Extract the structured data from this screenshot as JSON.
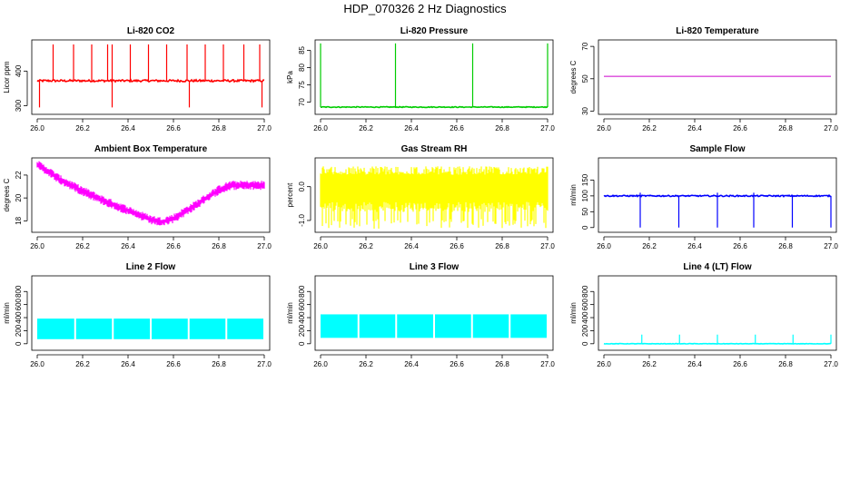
{
  "figure_title": "HDP_070326  2 Hz Diagnostics",
  "chart_data": [
    {
      "type": "line",
      "title": "Li-820 CO2",
      "xlabel": "",
      "ylabel": "Licor ppm",
      "color": "#ff0000",
      "xlim": [
        26.0,
        27.0
      ],
      "ylim": [
        275,
        490
      ],
      "xticks": [
        26.0,
        26.2,
        26.4,
        26.6,
        26.8,
        27.0
      ],
      "xtick_labels": [
        "26.0",
        "26.2",
        "26.4",
        "26.6",
        "26.8",
        "27.0"
      ],
      "yticks": [
        300,
        400
      ],
      "ytick_labels": [
        "300",
        "400"
      ],
      "pattern": "baseline_spikes",
      "baseline": 372,
      "noise": 3,
      "spikes_up": [
        26.07,
        26.16,
        26.24,
        26.31,
        26.33,
        26.41,
        26.49,
        26.57,
        26.66,
        26.74,
        26.82,
        26.91,
        26.98
      ],
      "spike_up_value": 477,
      "spikes_down": [
        26.01,
        26.33,
        26.67,
        26.99
      ],
      "spike_down_value": 295
    },
    {
      "type": "line",
      "title": "Li-820 Pressure",
      "xlabel": "",
      "ylabel": "kPa",
      "color": "#00cc00",
      "xlim": [
        26.0,
        27.0
      ],
      "ylim": [
        66.5,
        88
      ],
      "xticks": [
        26.0,
        26.2,
        26.4,
        26.6,
        26.8,
        27.0
      ],
      "xtick_labels": [
        "26.0",
        "26.2",
        "26.4",
        "26.6",
        "26.8",
        "27.0"
      ],
      "yticks": [
        70,
        75,
        80,
        85
      ],
      "ytick_labels": [
        "70",
        "75",
        "80",
        "85"
      ],
      "pattern": "baseline_spikes",
      "baseline": 68.6,
      "noise": 0.12,
      "spikes_up": [
        26.0,
        26.33,
        26.67,
        27.0
      ],
      "spike_up_value": 87,
      "spikes_down": [],
      "spike_down_value": 68
    },
    {
      "type": "line",
      "title": "Li-820 Temperature",
      "xlabel": "",
      "ylabel": "degrees C",
      "color": "#cc00cc",
      "xlim": [
        26.0,
        27.0
      ],
      "ylim": [
        28,
        74
      ],
      "xticks": [
        26.0,
        26.2,
        26.4,
        26.6,
        26.8,
        27.0
      ],
      "xtick_labels": [
        "26.0",
        "26.2",
        "26.4",
        "26.6",
        "26.8",
        "27.0"
      ],
      "yticks": [
        30,
        50,
        70
      ],
      "ytick_labels": [
        "30",
        "50",
        "70"
      ],
      "pattern": "flat",
      "baseline": 51.5,
      "noise": 0
    },
    {
      "type": "line",
      "title": "Ambient Box Temperature",
      "xlabel": "",
      "ylabel": "degrees C",
      "color": "#ff00ff",
      "xlim": [
        26.0,
        27.0
      ],
      "ylim": [
        17.0,
        23.5
      ],
      "xticks": [
        26.0,
        26.2,
        26.4,
        26.6,
        26.8,
        27.0
      ],
      "xtick_labels": [
        "26.0",
        "26.2",
        "26.4",
        "26.6",
        "26.8",
        "27.0"
      ],
      "yticks": [
        18,
        20,
        22
      ],
      "ytick_labels": [
        "18",
        "20",
        "22"
      ],
      "pattern": "curve_band",
      "curve_x": [
        26.0,
        26.05,
        26.1,
        26.2,
        26.3,
        26.4,
        26.5,
        26.55,
        26.6,
        26.7,
        26.8,
        26.85,
        26.9,
        27.0
      ],
      "curve_y": [
        22.9,
        22.3,
        21.6,
        20.6,
        19.7,
        18.9,
        18.1,
        17.9,
        18.2,
        19.4,
        20.7,
        21.1,
        21.1,
        21.1
      ],
      "band": 0.55
    },
    {
      "type": "line",
      "title": "Gas Stream RH",
      "xlabel": "",
      "ylabel": "percent",
      "color": "#ffff00",
      "xlim": [
        26.0,
        27.0
      ],
      "ylim": [
        -1.35,
        0.85
      ],
      "xticks": [
        26.0,
        26.2,
        26.4,
        26.6,
        26.8,
        27.0
      ],
      "xtick_labels": [
        "26.0",
        "26.2",
        "26.4",
        "26.6",
        "26.8",
        "27.0"
      ],
      "yticks": [
        -1.0,
        0.0
      ],
      "ytick_labels": [
        "-1.0",
        "0.0"
      ],
      "pattern": "noise_band",
      "band_low": -1.25,
      "band_high": 0.6,
      "core_low": -0.75,
      "core_high": 0.45
    },
    {
      "type": "line",
      "title": "Sample Flow",
      "xlabel": "",
      "ylabel": "ml/min",
      "color": "#0000ff",
      "xlim": [
        26.0,
        27.0
      ],
      "ylim": [
        -15,
        220
      ],
      "xticks": [
        26.0,
        26.2,
        26.4,
        26.6,
        26.8,
        27.0
      ],
      "xtick_labels": [
        "26.0",
        "26.2",
        "26.4",
        "26.6",
        "26.8",
        "27.0"
      ],
      "yticks": [
        0,
        50,
        100,
        150
      ],
      "ytick_labels": [
        "0",
        "50",
        "100",
        "150"
      ],
      "pattern": "baseline_spikes",
      "baseline": 100,
      "noise": 2,
      "spikes_up": [
        26.16,
        26.5,
        26.66
      ],
      "spike_up_value": 110,
      "spikes_down": [
        26.16,
        26.33,
        26.5,
        26.66,
        26.83,
        27.0
      ],
      "spike_down_value": 0
    },
    {
      "type": "line",
      "title": "Line 2 Flow",
      "xlabel": "",
      "ylabel": "ml/min",
      "color": "#00ffff",
      "xlim": [
        26.0,
        27.0
      ],
      "ylim": [
        -100,
        1040
      ],
      "xticks": [
        26.0,
        26.2,
        26.4,
        26.6,
        26.8,
        27.0
      ],
      "xtick_labels": [
        "26.0",
        "26.2",
        "26.4",
        "26.6",
        "26.8",
        "27.0"
      ],
      "yticks": [
        0,
        200,
        400,
        600,
        800
      ],
      "ytick_labels": [
        "0",
        "200",
        "400",
        "600",
        "800"
      ],
      "pattern": "blocks",
      "block_low": 70,
      "block_high": 385,
      "block_edges": [
        26.0,
        26.167,
        26.333,
        26.5,
        26.667,
        26.833,
        27.0
      ]
    },
    {
      "type": "line",
      "title": "Line 3 Flow",
      "xlabel": "",
      "ylabel": "ml/min",
      "color": "#00ffff",
      "xlim": [
        26.0,
        27.0
      ],
      "ylim": [
        -100,
        1040
      ],
      "xticks": [
        26.0,
        26.2,
        26.4,
        26.6,
        26.8,
        27.0
      ],
      "xtick_labels": [
        "26.0",
        "26.2",
        "26.4",
        "26.6",
        "26.8",
        "27.0"
      ],
      "yticks": [
        0,
        200,
        400,
        600,
        800
      ],
      "ytick_labels": [
        "0",
        "200",
        "400",
        "600",
        "800"
      ],
      "pattern": "blocks",
      "block_low": 90,
      "block_high": 450,
      "block_edges": [
        26.0,
        26.167,
        26.333,
        26.5,
        26.667,
        26.833,
        27.0
      ]
    },
    {
      "type": "line",
      "title": "Line 4 (LT) Flow",
      "xlabel": "",
      "ylabel": "ml/min",
      "color": "#00ffff",
      "xlim": [
        26.0,
        27.0
      ],
      "ylim": [
        -100,
        1040
      ],
      "xticks": [
        26.0,
        26.2,
        26.4,
        26.6,
        26.8,
        27.0
      ],
      "xtick_labels": [
        "26.0",
        "26.2",
        "26.4",
        "26.6",
        "26.8",
        "27.0"
      ],
      "yticks": [
        0,
        200,
        400,
        600,
        800
      ],
      "ytick_labels": [
        "0",
        "200",
        "400",
        "600",
        "800"
      ],
      "pattern": "baseline_spikes",
      "baseline": 0,
      "noise": 3,
      "spikes_up": [
        26.167,
        26.333,
        26.5,
        26.667,
        26.833,
        27.0
      ],
      "spike_up_value": 140,
      "spikes_down": [],
      "spike_down_value": 0
    }
  ]
}
